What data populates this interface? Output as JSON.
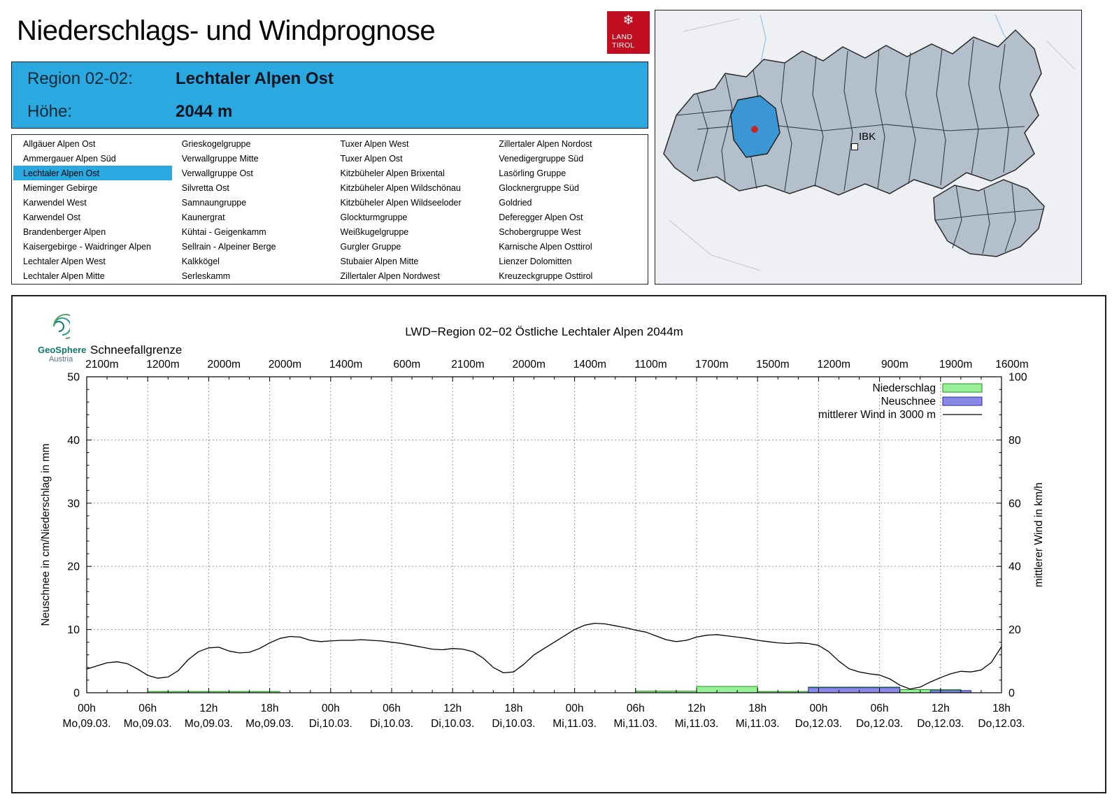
{
  "page": {
    "title": "Niederschlags- und Windprognose"
  },
  "land_logo": {
    "snowflake": "❄",
    "line1": "LAND",
    "line2": "TIROL"
  },
  "map": {
    "ibk_label": "IBK",
    "selected_region_color": "#3a97d4",
    "station_dot_color": "#c02828"
  },
  "region_header": {
    "region_label": "Region 02-02:",
    "region_value": "Lechtaler Alpen Ost",
    "altitude_label": "Höhe:",
    "altitude_value": "2044 m"
  },
  "region_list": {
    "selected": "Lechtaler Alpen Ost",
    "columns": [
      [
        "Allgäuer Alpen Ost",
        "Ammergauer Alpen Süd",
        "Lechtaler Alpen Ost",
        "Mieminger Gebirge",
        "Karwendel West",
        "Karwendel Ost",
        "Brandenberger Alpen",
        "Kaisergebirge - Waidringer Alpen",
        "Lechtaler Alpen West",
        "Lechtaler Alpen Mitte"
      ],
      [
        "Grieskogelgruppe",
        "Verwallgruppe Mitte",
        "Verwallgruppe Ost",
        "Silvretta Ost",
        "Samnaungruppe",
        "Kaunergrat",
        "Kühtai - Geigenkamm",
        "Sellrain - Alpeiner Berge",
        "Kalkkögel",
        "Serleskamm"
      ],
      [
        "Tuxer Alpen West",
        "Tuxer Alpen Ost",
        "Kitzbüheler Alpen Brixental",
        "Kitzbüheler Alpen Wildschönau",
        "Kitzbüheler Alpen Wildseeloder",
        "Glockturmgruppe",
        "Weißkugelgruppe",
        "Gurgler Gruppe",
        "Stubaier Alpen Mitte",
        "Zillertaler Alpen Nordwest"
      ],
      [
        "Zillertaler Alpen Nordost",
        "Venedigergruppe Süd",
        "Lasörling Gruppe",
        "Glocknergruppe Süd",
        "Goldried",
        "Deferegger Alpen Ost",
        "Schobergruppe West",
        "Karnische Alpen Osttirol",
        "Lienzer Dolomitten",
        "Kreuzeckgruppe Osttirol"
      ]
    ]
  },
  "geosphere": {
    "name": "GeoSphere",
    "sub": "Austria"
  },
  "chart_data": {
    "type": "mixed",
    "title": "LWD−Region 02−02 Östliche Lechtaler Alpen 2044m",
    "snowline_label": "Schneefallgrenze",
    "snowline_values": [
      "2100m",
      "1200m",
      "2000m",
      "2000m",
      "1400m",
      "600m",
      "2100m",
      "2000m",
      "1400m",
      "1100m",
      "1700m",
      "1500m",
      "1200m",
      "900m",
      "1900m",
      "1600m"
    ],
    "hours_span": 90,
    "x_ticks": [
      {
        "hour": "00h",
        "day": "Mo,09.03."
      },
      {
        "hour": "06h",
        "day": "Mo,09.03."
      },
      {
        "hour": "12h",
        "day": "Mo,09.03."
      },
      {
        "hour": "18h",
        "day": "Mo,09.03."
      },
      {
        "hour": "00h",
        "day": "Di,10.03."
      },
      {
        "hour": "06h",
        "day": "Di,10.03."
      },
      {
        "hour": "12h",
        "day": "Di,10.03."
      },
      {
        "hour": "18h",
        "day": "Di,10.03."
      },
      {
        "hour": "00h",
        "day": "Mi,11.03."
      },
      {
        "hour": "06h",
        "day": "Mi,11.03."
      },
      {
        "hour": "12h",
        "day": "Mi,11.03."
      },
      {
        "hour": "18h",
        "day": "Mi,11.03."
      },
      {
        "hour": "00h",
        "day": "Do,12.03."
      },
      {
        "hour": "06h",
        "day": "Do,12.03."
      },
      {
        "hour": "12h",
        "day": "Do,12.03."
      },
      {
        "hour": "18h",
        "day": "Do,12.03."
      }
    ],
    "left_axis": {
      "label": "Neuschnee in cm/Niederschlag in mm",
      "min": 0,
      "max": 50,
      "ticks": [
        0,
        10,
        20,
        30,
        40,
        50
      ]
    },
    "right_axis": {
      "label": "mittlerer Wind in km/h",
      "min": 0,
      "max": 100,
      "ticks": [
        0,
        20,
        40,
        60,
        80,
        100
      ]
    },
    "legend": [
      {
        "label": "Niederschlag",
        "type": "box",
        "fill": "#98f098",
        "stroke": "#1f8c1f"
      },
      {
        "label": "Neuschnee",
        "type": "box",
        "fill": "#8888e6",
        "stroke": "#2929a3"
      },
      {
        "label": "mittlerer Wind in 3000 m",
        "type": "line",
        "stroke": "#000000"
      }
    ],
    "wind_unit": "km/h",
    "wind_kmh_hourly": [
      7.5,
      8.5,
      9.5,
      9.8,
      9.2,
      7.5,
      5.5,
      4.6,
      5.0,
      7.0,
      10.5,
      13.0,
      14.2,
      14.4,
      13.2,
      12.6,
      12.8,
      14.0,
      15.8,
      17.2,
      17.8,
      17.6,
      16.6,
      16.2,
      16.4,
      16.6,
      16.6,
      16.8,
      16.6,
      16.4,
      16.0,
      15.6,
      15.0,
      14.4,
      13.8,
      13.6,
      14.0,
      13.8,
      13.0,
      11.0,
      8.0,
      6.3,
      6.6,
      9.0,
      12.0,
      14.0,
      16.0,
      18.0,
      20.0,
      21.4,
      22.0,
      21.8,
      21.2,
      20.6,
      19.8,
      19.2,
      18.0,
      16.8,
      16.2,
      16.6,
      17.6,
      18.2,
      18.4,
      18.0,
      17.6,
      17.2,
      16.6,
      16.2,
      15.8,
      15.6,
      15.8,
      15.6,
      15.0,
      13.0,
      10.0,
      7.6,
      6.6,
      6.0,
      5.6,
      4.4,
      2.4,
      1.2,
      1.8,
      3.4,
      4.8,
      6.0,
      6.8,
      6.6,
      7.2,
      9.6,
      14.6
    ],
    "precip_unit": "mm",
    "precip_segments_mm": [
      {
        "start": 6,
        "end": 19,
        "value": 0.2
      },
      {
        "start": 54,
        "end": 60,
        "value": 0.25
      },
      {
        "start": 60,
        "end": 66,
        "value": 1.0
      },
      {
        "start": 66,
        "end": 71,
        "value": 0.2
      },
      {
        "start": 71,
        "end": 80,
        "value": 0.9
      },
      {
        "start": 80,
        "end": 86,
        "value": 0.5
      }
    ],
    "snow_unit": "cm",
    "snow_segments_cm": [
      {
        "start": 71,
        "end": 80,
        "value": 0.8
      },
      {
        "start": 83,
        "end": 87,
        "value": 0.35
      }
    ],
    "colors": {
      "precip_fill": "#98f098",
      "precip_stroke": "#1f8c1f",
      "snow_fill": "#8888e6",
      "snow_stroke": "#2929a3",
      "wind": "#000000"
    }
  }
}
